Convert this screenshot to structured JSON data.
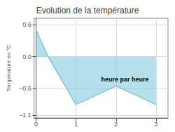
{
  "chart_data": {
    "type": "area",
    "title": "Evolution de la température",
    "xlabel": "heure par heure",
    "ylabel": "Température en °C",
    "x": [
      0,
      0.3,
      1,
      2,
      3
    ],
    "values": [
      0.5,
      0.0,
      -0.9,
      -0.55,
      -0.9
    ],
    "color": "#6bbfd8",
    "xlim": [
      -0.05,
      3.3
    ],
    "ylim": [
      -1.15,
      0.72
    ],
    "xticks": [
      0,
      1,
      2,
      3
    ],
    "yticks": [
      {
        "value": -1.1,
        "label": "−1.1"
      },
      {
        "value": -0.6,
        "label": "−0.6"
      },
      {
        "value": 0.0,
        "label": "0.0"
      },
      0.6
    ],
    "grid": true
  }
}
